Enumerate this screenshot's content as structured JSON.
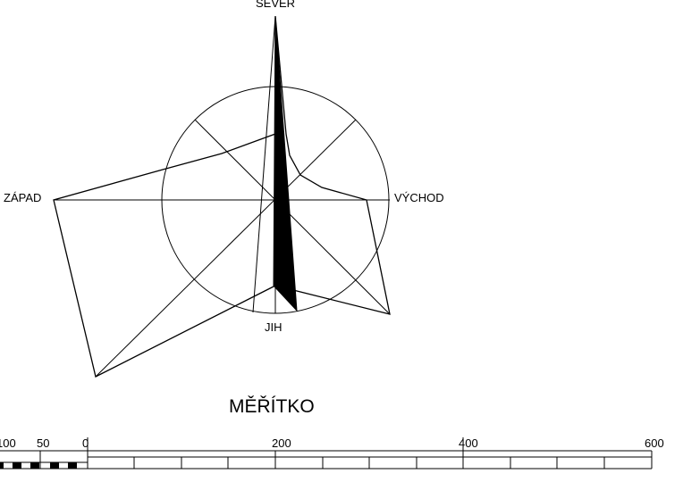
{
  "compass": {
    "north": "SEVER",
    "east": "VÝCHOD",
    "west": "ZÁPAD",
    "south": "JIH"
  },
  "scale": {
    "title": "MĚŘÍTKO",
    "ticks": [
      "100",
      "50",
      "0",
      "200",
      "400",
      "600"
    ]
  }
}
